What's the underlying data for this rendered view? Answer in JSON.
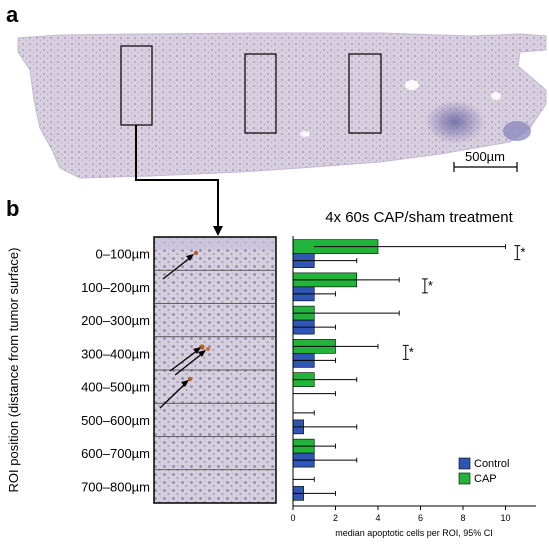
{
  "panel_a": {
    "letter": "a",
    "scale_bar_label": "500µm"
  },
  "panel_b": {
    "letter": "b"
  },
  "chart_data": {
    "type": "bar",
    "orientation": "horizontal",
    "title": "4x 60s CAP/sham treatment",
    "xlabel": "median apoptotic cells per ROI, 95% CI",
    "ylabel": "ROI position (distance from tumor surface)",
    "categories": [
      "0–100µm",
      "100–200µm",
      "200–300µm",
      "300–400µm",
      "400–500µm",
      "500–600µm",
      "600–700µm",
      "700–800µm"
    ],
    "xlim": [
      0,
      12
    ],
    "xticks": [
      0,
      2,
      4,
      6,
      8,
      10
    ],
    "grid": false,
    "legend_position": "bottom-right",
    "series": [
      {
        "name": "CAP",
        "color": "#22b33a",
        "values": [
          4,
          3,
          1,
          2,
          1,
          0,
          1,
          0
        ],
        "ci": [
          [
            1,
            10
          ],
          [
            0,
            5
          ],
          [
            0,
            5
          ],
          [
            0,
            4
          ],
          [
            0,
            3
          ],
          [
            0,
            1
          ],
          [
            0,
            2
          ],
          [
            0,
            1
          ]
        ]
      },
      {
        "name": "Control",
        "color": "#2f55b5",
        "values": [
          1,
          1,
          1,
          1,
          0,
          0.5,
          1,
          0.5
        ],
        "ci": [
          [
            0,
            3
          ],
          [
            0,
            2
          ],
          [
            0,
            2
          ],
          [
            0,
            2
          ],
          [
            0,
            2
          ],
          [
            0,
            3
          ],
          [
            0,
            3
          ],
          [
            0,
            2
          ]
        ]
      }
    ],
    "significance": [
      {
        "category": "0–100µm",
        "marker": "*",
        "bracket": [
          10.3,
          11
        ]
      },
      {
        "category": "100–200µm",
        "marker": "*",
        "bracket": [
          6.1,
          6.5
        ]
      },
      {
        "category": "300–400µm",
        "marker": "*",
        "bracket": [
          5.2,
          5.6
        ]
      }
    ]
  }
}
